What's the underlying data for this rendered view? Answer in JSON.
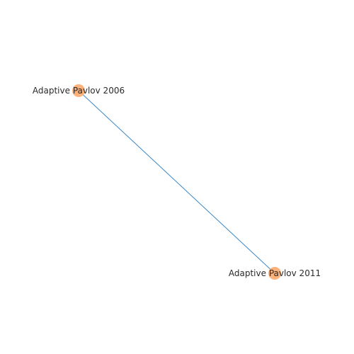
{
  "chart_data": {
    "type": "network",
    "nodes": [
      {
        "id": "n1",
        "label": "Adaptive Pavlov 2006"
      },
      {
        "id": "n2",
        "label": "Adaptive Pavlov 2011"
      }
    ],
    "edges": [
      {
        "source": "n1",
        "target": "n2"
      }
    ],
    "colors": {
      "node": "#fdb27a",
      "edge": "#3b87c4",
      "label": "#2a2a2a"
    }
  }
}
